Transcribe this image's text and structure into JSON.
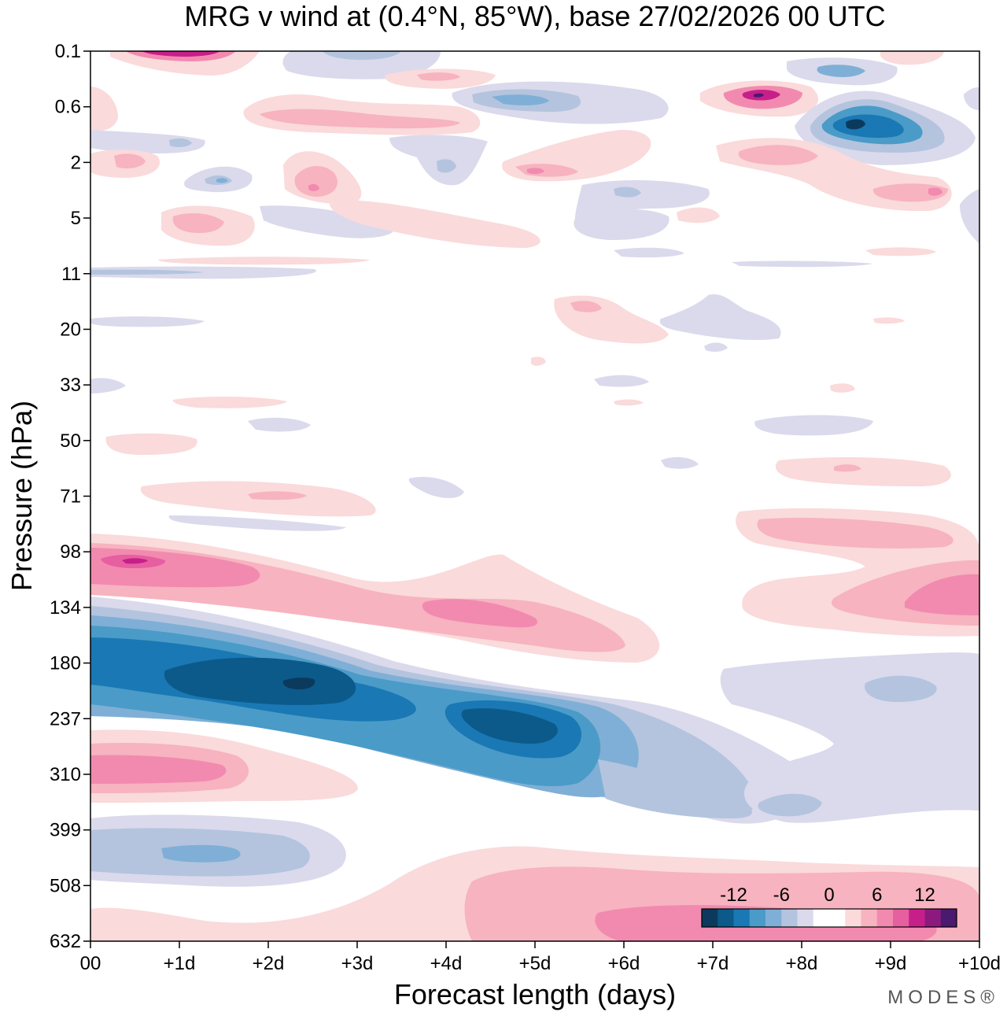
{
  "chart_data": {
    "type": "heatmap",
    "title": "MRG v wind at (0.4°N, 85°W),  base 27/02/2026  00 UTC",
    "xlabel": "Forecast length (days)",
    "ylabel": "Pressure (hPa)",
    "x_ticks": [
      "00",
      "+1d",
      "+2d",
      "+3d",
      "+4d",
      "+5d",
      "+6d",
      "+7d",
      "+8d",
      "+9d",
      "+10d"
    ],
    "y_ticks": [
      "0.1",
      "0.6",
      "2",
      "5",
      "11",
      "20",
      "33",
      "50",
      "71",
      "98",
      "134",
      "180",
      "237",
      "310",
      "399",
      "508",
      "632"
    ],
    "xlim_days": [
      0,
      10
    ],
    "colorbar": {
      "tick_labels": [
        "-12",
        "-6",
        "0",
        "6",
        "12"
      ],
      "colors": [
        "#0b3a5c",
        "#0b5a8a",
        "#1a78b4",
        "#4a9bc8",
        "#7fafd6",
        "#b4c4de",
        "#dadaec",
        "#ffffff",
        "#ffffff",
        "#fadadb",
        "#f7b3bf",
        "#f28ab0",
        "#e65fa0",
        "#c71f8a",
        "#8c1a7e",
        "#4a1a6e"
      ]
    },
    "contour_features": [
      {
        "sign": "negative",
        "peak": -12,
        "day_range": [
          0,
          6.3
        ],
        "pressure_range_hPa": [
          134,
          310
        ],
        "label": "strong southerly-negative band"
      },
      {
        "sign": "positive",
        "peak": 10,
        "day_range": [
          0,
          6.5
        ],
        "pressure_range_hPa": [
          98,
          160
        ],
        "label": "positive band above"
      },
      {
        "sign": "positive",
        "peak": 8,
        "day_range": [
          0,
          3
        ],
        "pressure_range_hPa": [
          260,
          340
        ]
      },
      {
        "sign": "negative",
        "peak": -6,
        "day_range": [
          0,
          2.8
        ],
        "pressure_range_hPa": [
          399,
          500
        ]
      },
      {
        "sign": "positive",
        "peak": 8,
        "day_range": [
          3.5,
          10
        ],
        "pressure_range_hPa": [
          480,
          632
        ]
      },
      {
        "sign": "negative",
        "peak": -4,
        "day_range": [
          7,
          10
        ],
        "pressure_range_hPa": [
          180,
          300
        ]
      },
      {
        "sign": "positive",
        "peak": 8,
        "day_range": [
          7,
          10
        ],
        "pressure_range_hPa": [
          85,
          150
        ]
      },
      {
        "sign": "negative",
        "peak": -10,
        "day_range": [
          8,
          9.5
        ],
        "pressure_range_hPa": [
          0.5,
          1.2
        ]
      },
      {
        "sign": "positive",
        "peak": 10,
        "day_range": [
          7,
          8
        ],
        "pressure_range_hPa": [
          0.3,
          0.8
        ]
      }
    ]
  },
  "watermark": "MODES®"
}
